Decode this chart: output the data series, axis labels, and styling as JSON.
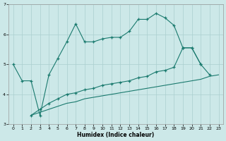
{
  "xlabel": "Humidex (Indice chaleur)",
  "background_color": "#cce8e8",
  "grid_color": "#aacfcf",
  "line_color": "#1a7a6e",
  "xlim": [
    -0.5,
    23.5
  ],
  "ylim": [
    3,
    7
  ],
  "yticks": [
    3,
    4,
    5,
    6,
    7
  ],
  "xticks": [
    0,
    1,
    2,
    3,
    4,
    5,
    6,
    7,
    8,
    9,
    10,
    11,
    12,
    13,
    14,
    15,
    16,
    17,
    18,
    19,
    20,
    21,
    22,
    23
  ],
  "s1_x": [
    0,
    1,
    2,
    3,
    4,
    5,
    6,
    7,
    8,
    9,
    10,
    11,
    12,
    13,
    14,
    15,
    16,
    17,
    18,
    19,
    20,
    21
  ],
  "s1_y": [
    5.0,
    4.45,
    4.45,
    3.3,
    4.65,
    5.2,
    5.75,
    6.35,
    5.75,
    5.75,
    5.85,
    5.9,
    5.9,
    6.1,
    6.5,
    6.5,
    6.7,
    6.55,
    6.3,
    5.55,
    5.55,
    5.0
  ],
  "s2_x": [
    2,
    3,
    4,
    5,
    6,
    7,
    8,
    9,
    10,
    11,
    12,
    13,
    14,
    15,
    16,
    17,
    18,
    19,
    20,
    21,
    22
  ],
  "s2_y": [
    3.3,
    3.5,
    3.7,
    3.85,
    4.0,
    4.05,
    4.15,
    4.2,
    4.3,
    4.35,
    4.4,
    4.45,
    4.55,
    4.6,
    4.75,
    4.8,
    4.9,
    5.55,
    5.55,
    5.0,
    4.65
  ],
  "s3_x": [
    2,
    3,
    4,
    5,
    6,
    7,
    8,
    9,
    10,
    11,
    12,
    13,
    14,
    15,
    16,
    17,
    18,
    19,
    20,
    21,
    22,
    23
  ],
  "s3_y": [
    3.3,
    3.4,
    3.5,
    3.6,
    3.7,
    3.75,
    3.85,
    3.9,
    3.95,
    4.0,
    4.05,
    4.1,
    4.15,
    4.2,
    4.25,
    4.3,
    4.35,
    4.4,
    4.45,
    4.5,
    4.6,
    4.65
  ]
}
